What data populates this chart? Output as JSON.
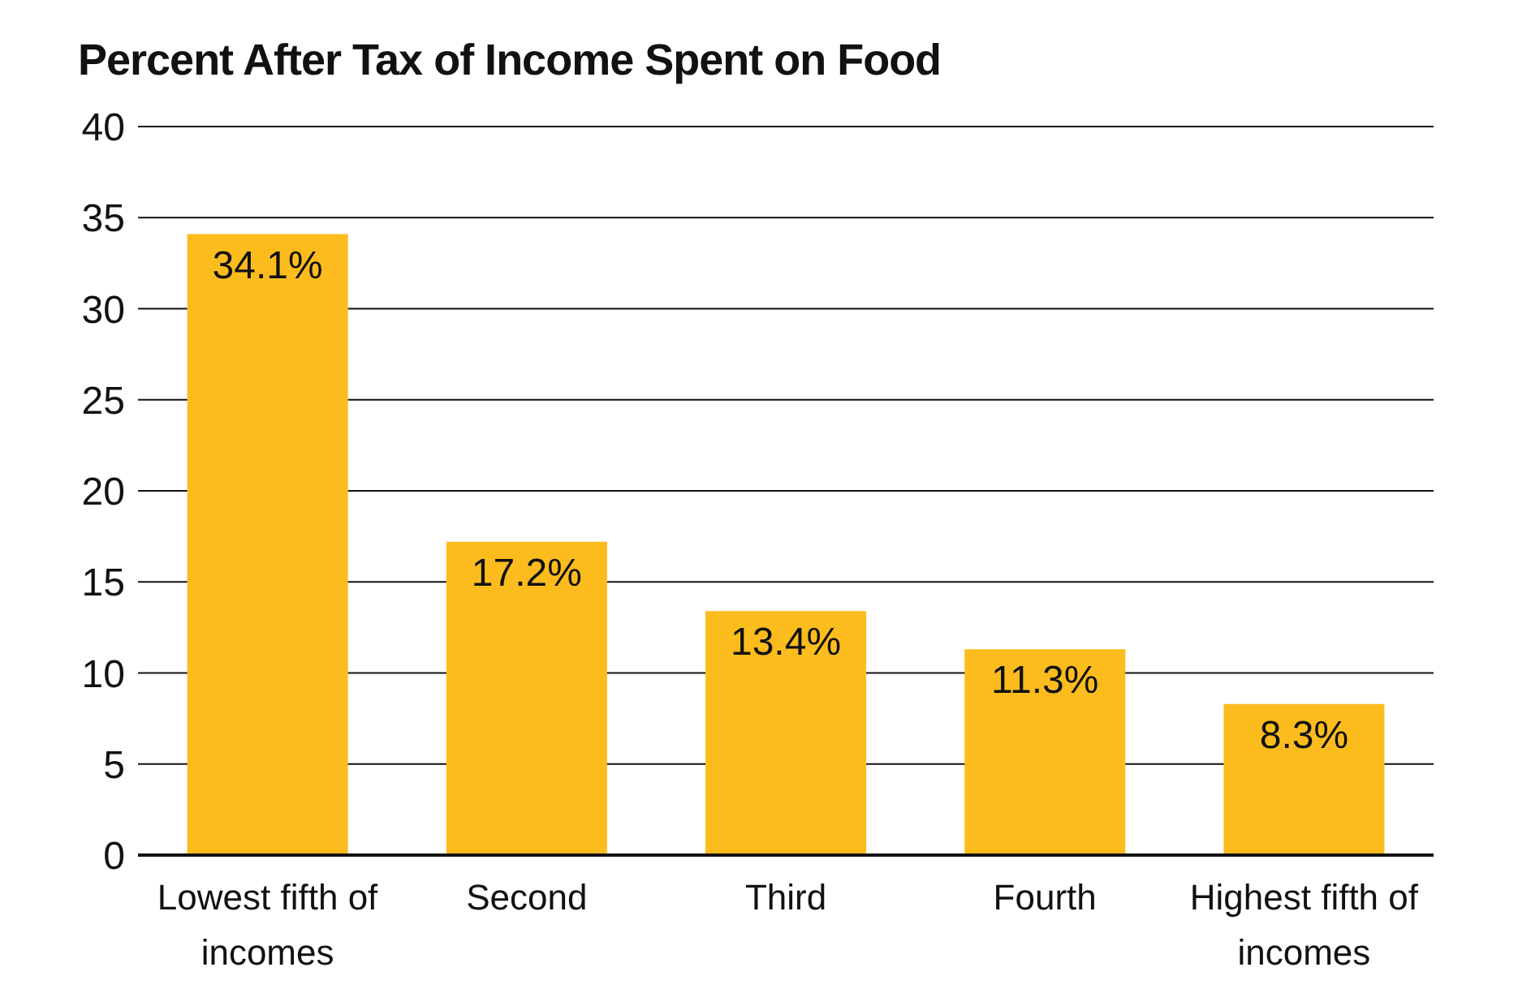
{
  "chart_data": {
    "type": "bar",
    "title": "Percent After Tax of Income Spent on Food",
    "categories": [
      "Lowest fifth of incomes",
      "Second",
      "Third",
      "Fourth",
      "Highest fifth of incomes"
    ],
    "values": [
      34.1,
      17.2,
      13.4,
      11.3,
      8.3
    ],
    "value_labels": [
      "34.1%",
      "17.2%",
      "13.4%",
      "11.3%",
      "8.3%"
    ],
    "color": "#fcbc1e",
    "ylim": [
      0,
      40
    ],
    "yticks": [
      0,
      5,
      10,
      15,
      20,
      25,
      30,
      35,
      40
    ],
    "grid": "y"
  }
}
